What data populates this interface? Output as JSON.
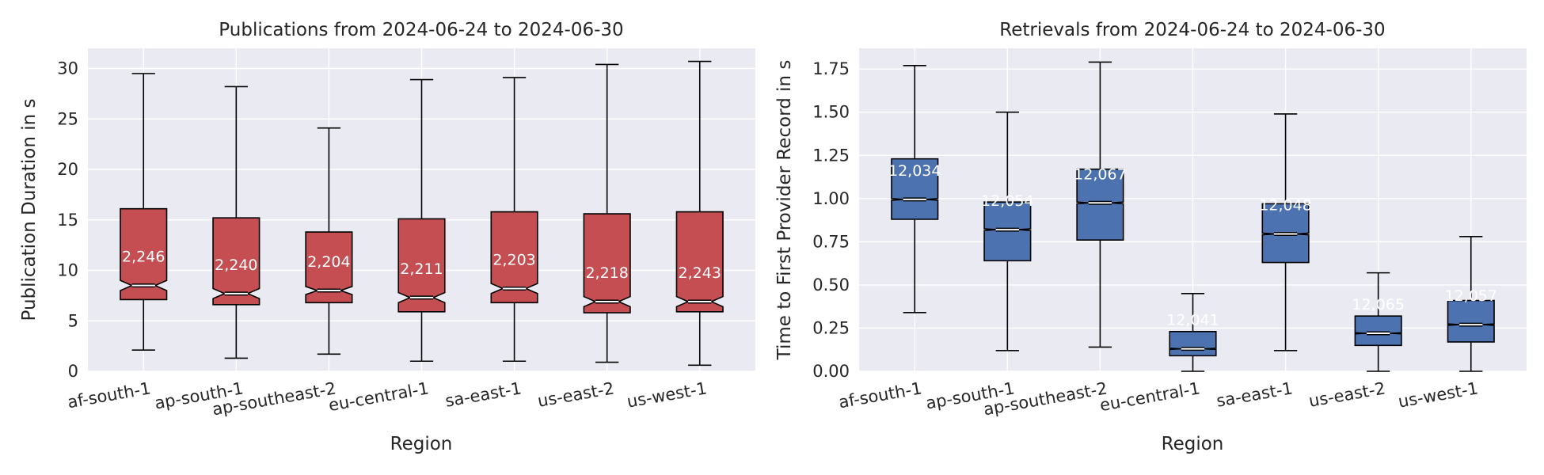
{
  "chart_data": [
    {
      "type": "boxplot",
      "title": "Publications from 2024-06-24 to 2024-06-30",
      "xlabel": "Region",
      "ylabel": "Publication Duration in s",
      "ylim": [
        0,
        32
      ],
      "yticks": [
        0,
        5,
        10,
        15,
        20,
        25,
        30
      ],
      "grid": true,
      "notched": true,
      "color": "#c44e52",
      "categories": [
        "af-south-1",
        "ap-south-1",
        "ap-southeast-2",
        "eu-central-1",
        "sa-east-1",
        "us-east-2",
        "us-west-1"
      ],
      "boxes": [
        {
          "whislo": 2.1,
          "q1": 7.1,
          "med": 8.5,
          "q3": 16.1,
          "whishi": 29.5,
          "ci_lo": 8.0,
          "ci_hi": 9.0,
          "label": "2,246"
        },
        {
          "whislo": 1.3,
          "q1": 6.6,
          "med": 7.7,
          "q3": 15.2,
          "whishi": 28.2,
          "ci_lo": 7.2,
          "ci_hi": 8.2,
          "label": "2,240"
        },
        {
          "whislo": 1.7,
          "q1": 6.8,
          "med": 8.0,
          "q3": 13.8,
          "whishi": 24.1,
          "ci_lo": 7.6,
          "ci_hi": 8.4,
          "label": "2,204"
        },
        {
          "whislo": 1.0,
          "q1": 5.9,
          "med": 7.3,
          "q3": 15.1,
          "whishi": 28.9,
          "ci_lo": 6.8,
          "ci_hi": 7.8,
          "label": "2,211"
        },
        {
          "whislo": 1.0,
          "q1": 6.8,
          "med": 8.2,
          "q3": 15.8,
          "whishi": 29.1,
          "ci_lo": 7.7,
          "ci_hi": 8.7,
          "label": "2,203"
        },
        {
          "whislo": 0.9,
          "q1": 5.8,
          "med": 6.9,
          "q3": 15.6,
          "whishi": 30.4,
          "ci_lo": 6.4,
          "ci_hi": 7.4,
          "label": "2,218"
        },
        {
          "whislo": 0.6,
          "q1": 5.9,
          "med": 6.9,
          "q3": 15.8,
          "whishi": 30.7,
          "ci_lo": 6.4,
          "ci_hi": 7.4,
          "label": "2,243"
        }
      ]
    },
    {
      "type": "boxplot",
      "title": "Retrievals from 2024-06-24 to 2024-06-30",
      "xlabel": "Region",
      "ylabel": "Time to First Provider Record in s",
      "ylim": [
        0,
        1.87
      ],
      "yticks": [
        0.0,
        0.25,
        0.5,
        0.75,
        1.0,
        1.25,
        1.5,
        1.75
      ],
      "yticklabels": [
        "0.00",
        "0.25",
        "0.50",
        "0.75",
        "1.00",
        "1.25",
        "1.50",
        "1.75"
      ],
      "grid": true,
      "notched": true,
      "color": "#4c72b0",
      "categories": [
        "af-south-1",
        "ap-south-1",
        "ap-southeast-2",
        "eu-central-1",
        "sa-east-1",
        "us-east-2",
        "us-west-1"
      ],
      "boxes": [
        {
          "whislo": 0.34,
          "q1": 0.88,
          "med": 0.995,
          "q3": 1.23,
          "whishi": 1.77,
          "ci_lo": 0.99,
          "ci_hi": 1.0,
          "label": "12,034"
        },
        {
          "whislo": 0.12,
          "q1": 0.64,
          "med": 0.82,
          "q3": 0.98,
          "whishi": 1.5,
          "ci_lo": 0.815,
          "ci_hi": 0.825,
          "label": "12,054"
        },
        {
          "whislo": 0.14,
          "q1": 0.76,
          "med": 0.975,
          "q3": 1.17,
          "whishi": 1.79,
          "ci_lo": 0.97,
          "ci_hi": 0.98,
          "label": "12,067"
        },
        {
          "whislo": 0.0,
          "q1": 0.09,
          "med": 0.13,
          "q3": 0.23,
          "whishi": 0.45,
          "ci_lo": 0.127,
          "ci_hi": 0.133,
          "label": "12,041"
        },
        {
          "whislo": 0.12,
          "q1": 0.63,
          "med": 0.795,
          "q3": 0.97,
          "whishi": 1.49,
          "ci_lo": 0.79,
          "ci_hi": 0.8,
          "label": "12,048"
        },
        {
          "whislo": 0.0,
          "q1": 0.15,
          "med": 0.22,
          "q3": 0.32,
          "whishi": 0.57,
          "ci_lo": 0.217,
          "ci_hi": 0.223,
          "label": "12,065"
        },
        {
          "whislo": 0.0,
          "q1": 0.17,
          "med": 0.27,
          "q3": 0.41,
          "whishi": 0.78,
          "ci_lo": 0.266,
          "ci_hi": 0.274,
          "label": "12,057"
        }
      ]
    }
  ]
}
